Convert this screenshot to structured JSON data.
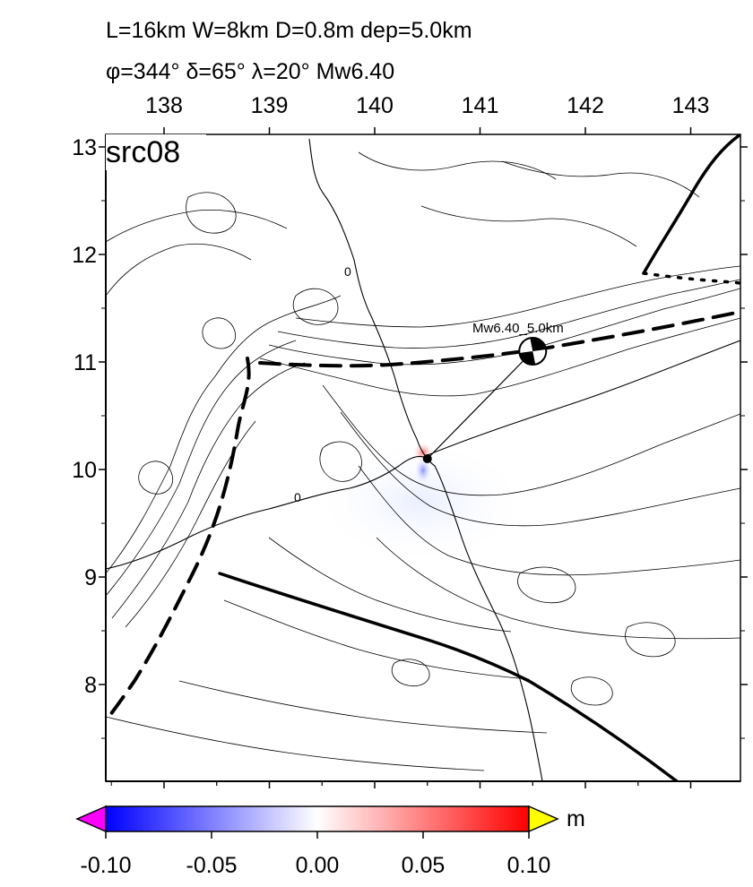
{
  "header": {
    "line1": "L=16km W=8km D=0.8m dep=5.0km",
    "line2": "φ=344° δ=65° λ=20° Mw6.40"
  },
  "map": {
    "panel_label": "src08",
    "lon_ticks": [
      "138",
      "139",
      "140",
      "141",
      "142",
      "143"
    ],
    "lat_ticks": [
      "13",
      "12",
      "11",
      "10",
      "9",
      "8"
    ],
    "contour_label": "0",
    "contour_label_2": "0",
    "event_label": "Mw6.40_5.0km",
    "epicenter": {
      "lon": 140.5,
      "lat": 10.1
    },
    "beachball": {
      "lon": 141.5,
      "lat": 11.1
    }
  },
  "colorbar": {
    "unit": "m",
    "ticks": [
      "-0.10",
      "-0.05",
      "0.00",
      "0.05",
      "0.10"
    ],
    "colors": {
      "min": "#0000ff",
      "mid": "#ffffff",
      "max": "#ff0000",
      "under": "#ff00ff",
      "over": "#ffff00"
    }
  }
}
